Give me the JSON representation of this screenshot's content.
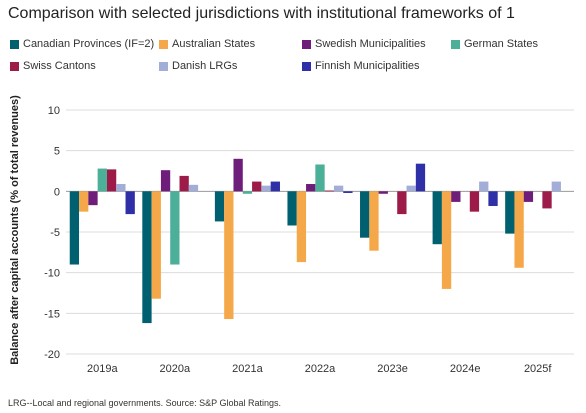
{
  "title": "Comparison with selected jurisdictions with institutional frameworks of 1",
  "footnote": "LRG--Local and regional governments.  Source: S&P Global Ratings.",
  "chart_data": {
    "type": "bar",
    "title": "Comparison with selected jurisdictions with institutional frameworks of 1",
    "xlabel": "",
    "ylabel": "Balance after capital accounts (% of total revenues)",
    "ylim": [
      -20,
      10
    ],
    "yticks": [
      10,
      5,
      0,
      -5,
      -10,
      -15,
      -20
    ],
    "grid": true,
    "legend_position": "top",
    "categories": [
      "2019a",
      "2020a",
      "2021a",
      "2022a",
      "2023e",
      "2024e",
      "2025f"
    ],
    "series": [
      {
        "name": "Canadian Provinces (IF=2)",
        "color": "#00606f",
        "values": [
          -9.0,
          -16.2,
          -3.7,
          -4.2,
          -5.7,
          -6.5,
          -5.2
        ]
      },
      {
        "name": "Australian States",
        "color": "#f5a84a",
        "values": [
          -2.5,
          -13.2,
          -15.7,
          -8.7,
          -7.3,
          -12.0,
          -9.4
        ]
      },
      {
        "name": "Swedish Municipalities",
        "color": "#6e1e7a",
        "values": [
          -1.7,
          2.6,
          4.0,
          0.9,
          -0.3,
          -1.3,
          -1.3
        ]
      },
      {
        "name": "German States",
        "color": "#4caf98",
        "values": [
          2.8,
          -9.0,
          -0.3,
          3.3,
          0.0,
          0.0,
          0.0
        ]
      },
      {
        "name": "Swiss Cantons",
        "color": "#9c1b48",
        "values": [
          2.7,
          1.9,
          1.2,
          0.1,
          -2.8,
          -2.5,
          -2.1
        ]
      },
      {
        "name": "Danish LRGs",
        "color": "#a3aed8",
        "values": [
          0.9,
          0.8,
          0.7,
          0.7,
          0.7,
          1.2,
          1.2
        ]
      },
      {
        "name": "Finnish Municipalities",
        "color": "#2f2fa8",
        "values": [
          -2.8,
          0.0,
          1.2,
          -0.2,
          3.4,
          -1.8,
          0.0
        ]
      }
    ]
  }
}
